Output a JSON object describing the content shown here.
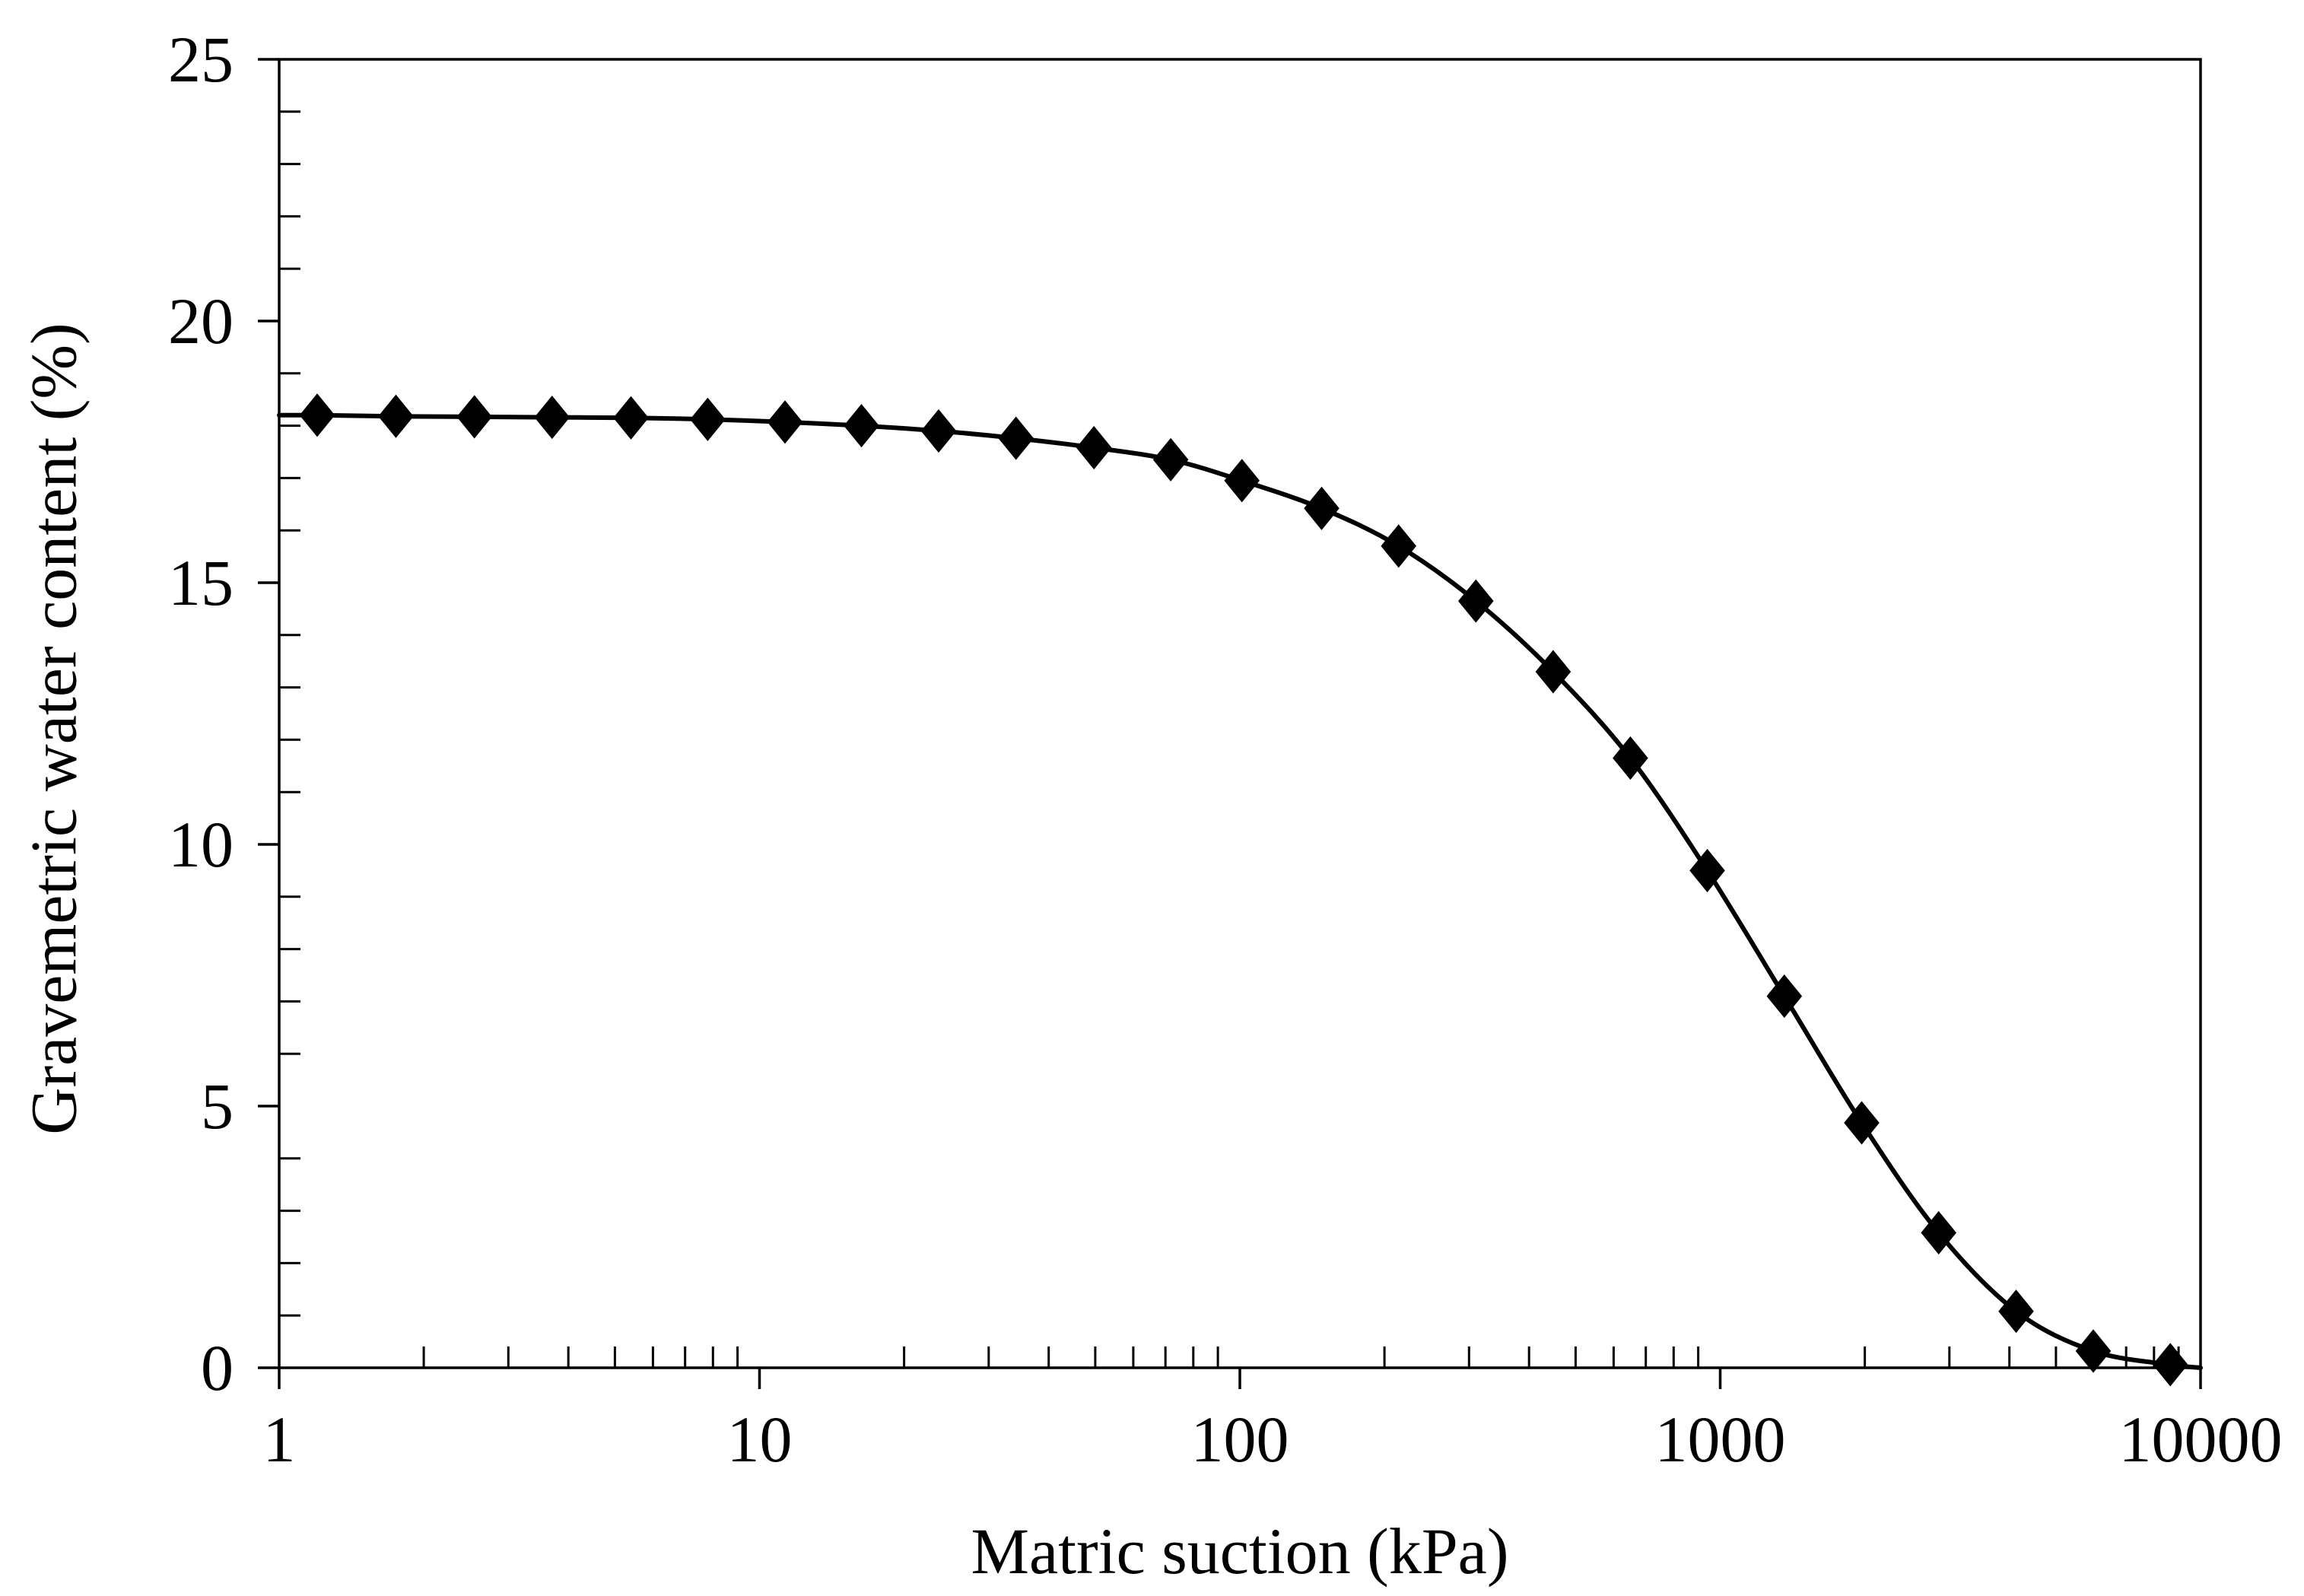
{
  "chart_data": {
    "type": "line",
    "title": "",
    "xlabel": "Matric suction (kPa)",
    "ylabel": "Gravemetric water content (%)",
    "x_scale": "log",
    "xlim": [
      1,
      10000
    ],
    "ylim": [
      0,
      25
    ],
    "x_ticks": [
      1,
      10,
      100,
      1000,
      10000
    ],
    "x_tick_labels": [
      "1",
      "10",
      "100",
      "1000",
      "10000"
    ],
    "y_ticks": [
      0,
      5,
      10,
      15,
      20,
      25
    ],
    "y_tick_labels": [
      "0",
      "5",
      "10",
      "15",
      "20",
      "25"
    ],
    "y_minor_step": 1,
    "grid": false,
    "legend": "none",
    "series": [
      {
        "name": "Gravemetric water content",
        "marker": "diamond",
        "line_color": "#000000",
        "marker_color": "#000000",
        "curve_start": {
          "x": 1,
          "y": 18.2
        },
        "curve_end": {
          "x": 10000,
          "y": 0.0
        },
        "points": [
          {
            "x": 1.2,
            "y": 18.2
          },
          {
            "x": 1.75,
            "y": 18.18
          },
          {
            "x": 2.55,
            "y": 18.17
          },
          {
            "x": 3.7,
            "y": 18.16
          },
          {
            "x": 5.4,
            "y": 18.15
          },
          {
            "x": 7.8,
            "y": 18.12
          },
          {
            "x": 11.3,
            "y": 18.07
          },
          {
            "x": 16.3,
            "y": 18.0
          },
          {
            "x": 23.6,
            "y": 17.9
          },
          {
            "x": 34.2,
            "y": 17.76
          },
          {
            "x": 49.7,
            "y": 17.58
          },
          {
            "x": 71.8,
            "y": 17.35
          },
          {
            "x": 101,
            "y": 16.95
          },
          {
            "x": 148,
            "y": 16.42
          },
          {
            "x": 214,
            "y": 15.7
          },
          {
            "x": 310,
            "y": 14.65
          },
          {
            "x": 449,
            "y": 13.3
          },
          {
            "x": 650,
            "y": 11.65
          },
          {
            "x": 940,
            "y": 9.5
          },
          {
            "x": 1360,
            "y": 7.1
          },
          {
            "x": 1970,
            "y": 4.68
          },
          {
            "x": 2850,
            "y": 2.58
          },
          {
            "x": 4130,
            "y": 1.08
          },
          {
            "x": 5980,
            "y": 0.32
          },
          {
            "x": 8650,
            "y": 0.06
          }
        ]
      }
    ]
  }
}
